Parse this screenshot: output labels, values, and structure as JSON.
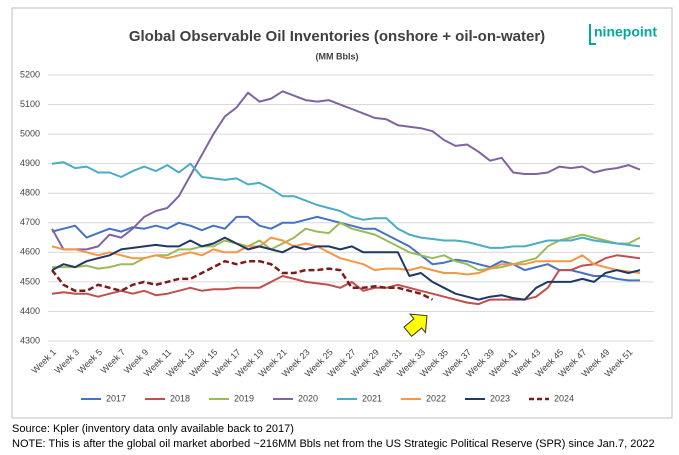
{
  "chart_data": {
    "type": "line",
    "title": "Global Observable Oil Inventories (onshore + oil-on-water)",
    "subtitle": "(MM Bbls)",
    "logo": "ninepoint",
    "categories": [
      "Week 1",
      null,
      "Week 3",
      null,
      "Week 5",
      null,
      "Week 7",
      null,
      "Week 9",
      null,
      "Week 11",
      null,
      "Week 13",
      null,
      "Week 15",
      null,
      "Week 17",
      null,
      "Week 19",
      null,
      "Week 21",
      null,
      "Week 23",
      null,
      "Week 25",
      null,
      "Week 27",
      null,
      "Week 29",
      null,
      "Week 31",
      null,
      "Week 33",
      null,
      "Week 35",
      null,
      "Week 37",
      null,
      "Week 39",
      null,
      "Week 41",
      null,
      "Week 43",
      null,
      "Week 45",
      null,
      "Week 47",
      null,
      "Week 49",
      null,
      "Week 51",
      null
    ],
    "ylim": [
      4300,
      5200
    ],
    "yticks": [
      4300,
      4400,
      4500,
      4600,
      4700,
      4800,
      4900,
      5000,
      5100,
      5200
    ],
    "grid": true,
    "legend": "bottom",
    "series": [
      {
        "name": "2017",
        "color": "#4472c4",
        "values": [
          4670,
          4680,
          4690,
          4650,
          4665,
          4680,
          4670,
          4685,
          4680,
          4690,
          4680,
          4700,
          4690,
          4675,
          4690,
          4680,
          4720,
          4720,
          4690,
          4680,
          4700,
          4700,
          4710,
          4720,
          4710,
          4700,
          4690,
          4680,
          4680,
          4660,
          4640,
          4620,
          4590,
          4560,
          4565,
          4575,
          4570,
          4560,
          4550,
          4570,
          4560,
          4540,
          4550,
          4560,
          4540,
          4540,
          4530,
          4520,
          4520,
          4510,
          4505,
          4505
        ]
      },
      {
        "name": "2018",
        "color": "#c0504d",
        "values": [
          4460,
          4465,
          4460,
          4460,
          4450,
          4460,
          4470,
          4460,
          4470,
          4455,
          4460,
          4470,
          4480,
          4470,
          4475,
          4475,
          4480,
          4480,
          4480,
          4500,
          4520,
          4510,
          4500,
          4495,
          4490,
          4480,
          4500,
          4470,
          4480,
          4480,
          4490,
          4480,
          4470,
          4460,
          4450,
          4440,
          4430,
          4425,
          4440,
          4440,
          4440,
          4440,
          4450,
          4480,
          4540,
          4540,
          4555,
          4560,
          4580,
          4590,
          4585,
          4580
        ]
      },
      {
        "name": "2019",
        "color": "#9bbb59",
        "values": [
          4550,
          4550,
          4550,
          4555,
          4545,
          4550,
          4560,
          4560,
          4580,
          4590,
          4590,
          4610,
          4610,
          4620,
          4620,
          4640,
          4630,
          4620,
          4640,
          4610,
          4630,
          4650,
          4680,
          4670,
          4665,
          4700,
          4680,
          4670,
          4660,
          4640,
          4620,
          4600,
          4590,
          4580,
          4590,
          4570,
          4560,
          4540,
          4545,
          4550,
          4560,
          4570,
          4580,
          4620,
          4640,
          4650,
          4660,
          4650,
          4640,
          4630,
          4630,
          4650
        ]
      },
      {
        "name": "2020",
        "color": "#8064a2",
        "values": [
          4680,
          4610,
          4610,
          4610,
          4620,
          4660,
          4650,
          4680,
          4720,
          4740,
          4750,
          4790,
          4860,
          4930,
          5000,
          5060,
          5090,
          5140,
          5110,
          5120,
          5145,
          5130,
          5115,
          5110,
          5115,
          5100,
          5085,
          5070,
          5055,
          5050,
          5030,
          5025,
          5020,
          5010,
          4980,
          4960,
          4965,
          4940,
          4910,
          4920,
          4870,
          4865,
          4865,
          4870,
          4890,
          4885,
          4890,
          4870,
          4880,
          4885,
          4895,
          4880
        ]
      },
      {
        "name": "2021",
        "color": "#4bacc6",
        "values": [
          4900,
          4905,
          4885,
          4890,
          4870,
          4870,
          4855,
          4875,
          4890,
          4875,
          4895,
          4870,
          4900,
          4855,
          4850,
          4845,
          4850,
          4830,
          4835,
          4815,
          4790,
          4790,
          4775,
          4760,
          4750,
          4740,
          4720,
          4710,
          4715,
          4715,
          4680,
          4660,
          4650,
          4645,
          4640,
          4640,
          4635,
          4625,
          4615,
          4615,
          4620,
          4620,
          4630,
          4640,
          4640,
          4640,
          4650,
          4640,
          4635,
          4630,
          4625,
          4620
        ]
      },
      {
        "name": "2022",
        "color": "#f79646",
        "values": [
          4620,
          4610,
          4610,
          4600,
          4590,
          4600,
          4590,
          4580,
          4580,
          4590,
          4580,
          4590,
          4600,
          4590,
          4610,
          4600,
          4600,
          4620,
          4620,
          4650,
          4640,
          4620,
          4630,
          4620,
          4600,
          4580,
          4570,
          4560,
          4540,
          4545,
          4545,
          4540,
          4550,
          4540,
          4530,
          4530,
          4525,
          4530,
          4545,
          4560,
          4560,
          4560,
          4570,
          4570,
          4570,
          4570,
          4590,
          4560,
          4550,
          4540,
          4535,
          4530
        ]
      },
      {
        "name": "2023",
        "color": "#1f3864",
        "values": [
          4540,
          4560,
          4550,
          4570,
          4580,
          4590,
          4610,
          4615,
          4620,
          4625,
          4620,
          4620,
          4640,
          4620,
          4630,
          4650,
          4630,
          4610,
          4620,
          4610,
          4600,
          4620,
          4610,
          4620,
          4620,
          4610,
          4620,
          4600,
          4600,
          4600,
          4600,
          4520,
          4530,
          4500,
          4480,
          4460,
          4450,
          4440,
          4450,
          4455,
          4445,
          4440,
          4480,
          4500,
          4500,
          4500,
          4510,
          4500,
          4530,
          4540,
          4530,
          4540
        ]
      },
      {
        "name": "2024",
        "color": "#7b1c1c",
        "dashed": true,
        "values": [
          4540,
          4490,
          4470,
          4470,
          4490,
          4480,
          4470,
          4490,
          4500,
          4490,
          4500,
          4510,
          4510,
          4530,
          4550,
          4570,
          4560,
          4570,
          4570,
          4560,
          4530,
          4530,
          4540,
          4540,
          4545,
          4540,
          4480,
          4480,
          4485,
          4480,
          4480,
          4470,
          4460,
          4440,
          null,
          null,
          null,
          null,
          null,
          null,
          null,
          null,
          null,
          null,
          null,
          null,
          null,
          null,
          null,
          null,
          null,
          null
        ]
      }
    ]
  },
  "footer": {
    "source": "Source: Kpler (inventory data only available back to 2017)",
    "note": "NOTE: This is after the global oil market aborbed ~216MM Bbls net from the US Strategic Political Reserve (SPR) since Jan.7, 2022"
  }
}
